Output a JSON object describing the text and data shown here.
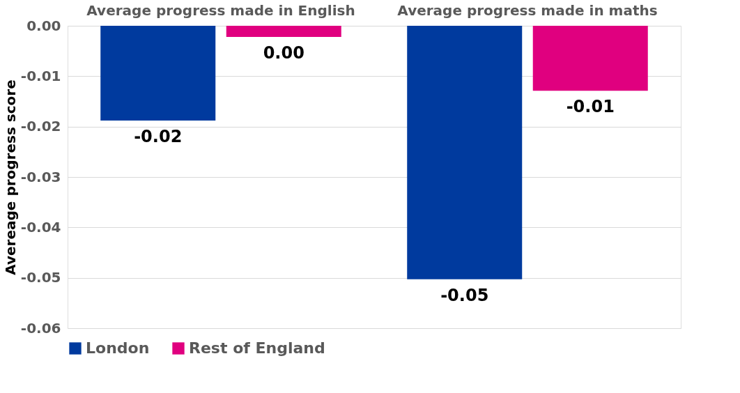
{
  "chart_data": {
    "type": "bar",
    "ylabel": "Avereage progress score",
    "categories": [
      "Average progress made in English",
      "Average progress made in maths"
    ],
    "series": [
      {
        "name": "London",
        "color": "#003a9e",
        "values": [
          -0.0188,
          -0.0503
        ],
        "value_labels": [
          "-0.02",
          "-0.05"
        ]
      },
      {
        "name": "Rest of England",
        "color": "#e0007f",
        "values": [
          -0.0022,
          -0.0129
        ],
        "value_labels": [
          "0.00",
          "-0.01"
        ]
      }
    ],
    "ylim": [
      -0.06,
      0
    ],
    "yticks": [
      {
        "value": 0,
        "label": "0.00"
      },
      {
        "value": -0.01,
        "label": "-0.01"
      },
      {
        "value": -0.02,
        "label": "-0.02"
      },
      {
        "value": -0.03,
        "label": "-0.03"
      },
      {
        "value": -0.04,
        "label": "-0.04"
      },
      {
        "value": -0.05,
        "label": "-0.05"
      },
      {
        "value": -0.06,
        "label": "-0.06"
      }
    ],
    "grid": "y",
    "legend": "bottom"
  }
}
